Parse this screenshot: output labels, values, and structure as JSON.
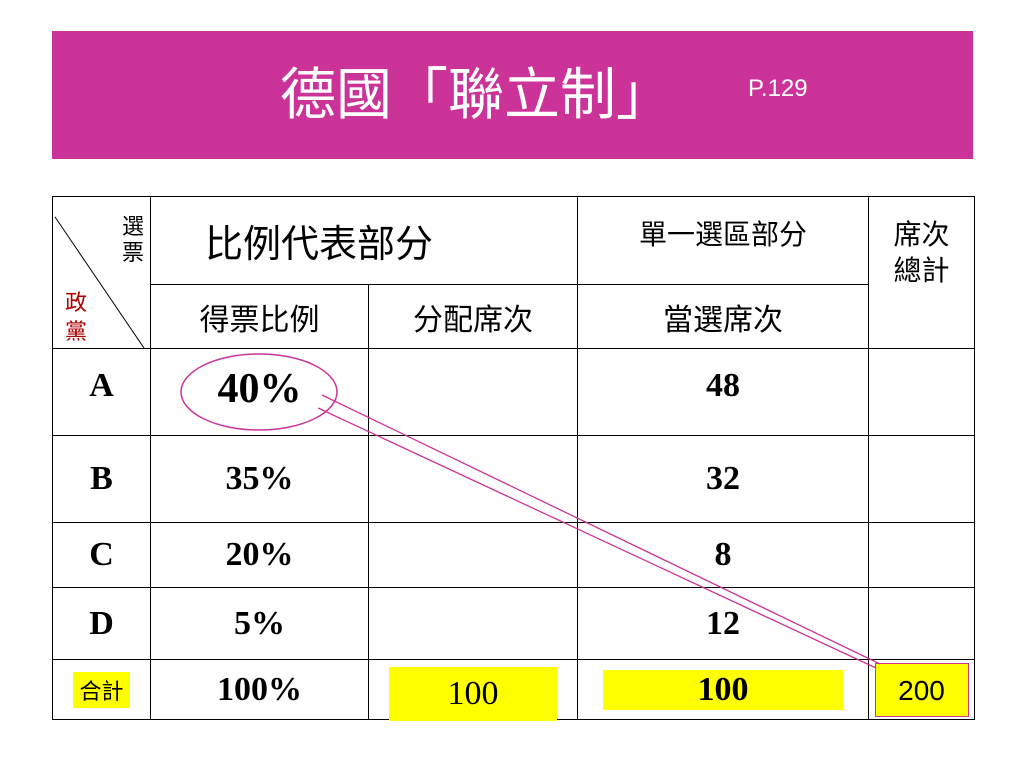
{
  "title": "德國「聯立制」",
  "page_ref": "P.129",
  "table": {
    "corner_top": "選\n票",
    "corner_bottom": "政\n黨",
    "header_pr": "比例代表部分",
    "header_district": "單一選區部分",
    "header_total": "席次\n總計",
    "sub_vote_share": "得票比例",
    "sub_allocated": "分配席次",
    "sub_won": "當選席次",
    "rows": [
      {
        "party": "A",
        "share": "40%",
        "allocated": "",
        "won": "48",
        "total": ""
      },
      {
        "party": "B",
        "share": "35%",
        "allocated": "",
        "won": "32",
        "total": ""
      },
      {
        "party": "C",
        "share": "20%",
        "allocated": "",
        "won": "8",
        "total": ""
      },
      {
        "party": "D",
        "share": "5%",
        "allocated": "",
        "won": "12",
        "total": ""
      }
    ],
    "sum_row": {
      "label": "合計",
      "share": "100%",
      "allocated": "100",
      "won": "100",
      "total": "200"
    }
  },
  "colors": {
    "banner": "#cc3399",
    "party_text": "#b00000",
    "highlight": "#ffff00",
    "annotation": "#cc3399"
  }
}
